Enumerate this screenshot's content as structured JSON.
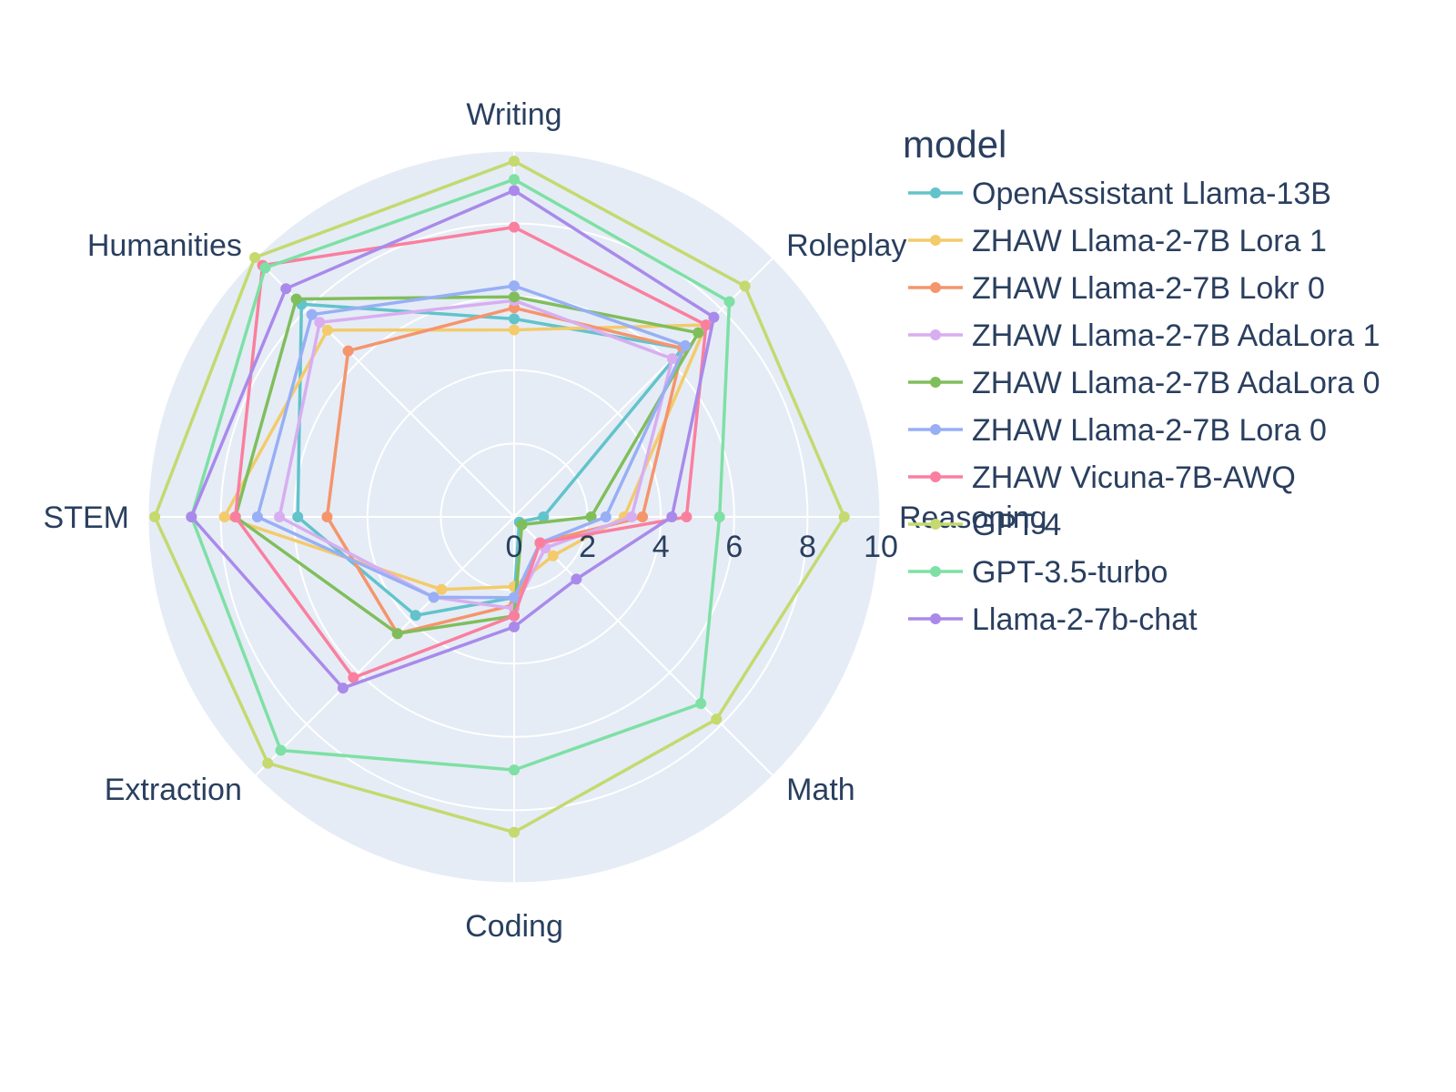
{
  "chart_data": {
    "type": "radar",
    "categories": [
      "Writing",
      "Roleplay",
      "Reasoning",
      "Math",
      "Coding",
      "Extraction",
      "STEM",
      "Humanities"
    ],
    "radial_range": [
      0,
      10
    ],
    "radial_ticks": [
      "0",
      "2",
      "4",
      "6",
      "8",
      "10"
    ],
    "legend_title": "model",
    "grid": true,
    "legend_position": "right",
    "series": [
      {
        "name": "OpenAssistant Llama-13B",
        "color": "#62c3cb",
        "values": [
          5.4,
          6.5,
          0.8,
          0.2,
          2.2,
          3.8,
          5.9,
          8.2
        ]
      },
      {
        "name": "ZHAW Llama-2-7B Lora 1",
        "color": "#f3cb6c",
        "values": [
          5.1,
          7.4,
          3.0,
          1.5,
          1.9,
          2.8,
          7.9,
          7.2
        ]
      },
      {
        "name": "ZHAW Llama-2-7B Lokr 0",
        "color": "#f5956c",
        "values": [
          5.7,
          6.5,
          3.5,
          1.0,
          2.4,
          4.5,
          5.1,
          6.4
        ]
      },
      {
        "name": "ZHAW Llama-2-7B AdaLora 1",
        "color": "#d8aef0",
        "values": [
          5.9,
          6.1,
          3.2,
          1.2,
          2.5,
          3.1,
          6.4,
          7.5
        ]
      },
      {
        "name": "ZHAW Llama-2-7B AdaLora 0",
        "color": "#80be5b",
        "values": [
          6.0,
          7.1,
          2.1,
          0.3,
          2.7,
          4.5,
          7.6,
          8.4
        ]
      },
      {
        "name": "ZHAW Llama-2-7B Lora 0",
        "color": "#98aff5",
        "values": [
          6.3,
          6.6,
          2.5,
          1.0,
          2.2,
          3.1,
          7.0,
          7.8
        ]
      },
      {
        "name": "ZHAW Vicuna-7B-AWQ",
        "color": "#fa7f9f",
        "values": [
          7.9,
          7.4,
          4.7,
          1.0,
          2.7,
          6.2,
          7.6,
          9.7
        ]
      },
      {
        "name": "GPT-4",
        "color": "#c5d96f",
        "values": [
          9.7,
          8.9,
          9.0,
          7.8,
          8.6,
          9.5,
          9.8,
          10.0
        ]
      },
      {
        "name": "GPT-3.5-turbo",
        "color": "#7ee0a4",
        "values": [
          9.2,
          8.3,
          5.6,
          7.2,
          6.9,
          9.0,
          8.8,
          9.6
        ]
      },
      {
        "name": "Llama-2-7b-chat",
        "color": "#a98aeb",
        "values": [
          8.9,
          7.7,
          4.3,
          2.4,
          3.0,
          6.6,
          8.8,
          8.8
        ]
      }
    ]
  }
}
